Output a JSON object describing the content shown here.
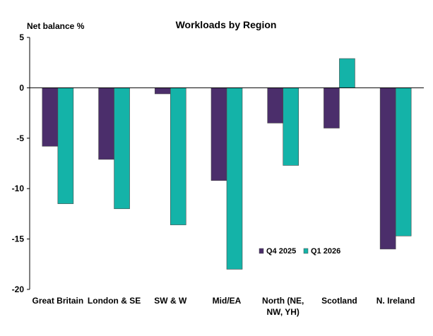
{
  "chart_data": {
    "type": "bar",
    "title": "Workloads by Region",
    "ylabel": "Net balance %",
    "xlabel": "",
    "ylim": [
      -20,
      5
    ],
    "yticks": [
      5,
      0,
      -5,
      -10,
      -15,
      -20
    ],
    "categories": [
      [
        "Great Britain"
      ],
      [
        "London & SE"
      ],
      [
        "SW & W"
      ],
      [
        "Mid/EA"
      ],
      [
        "North (NE,",
        "NW, YH)"
      ],
      [
        "Scotland"
      ],
      [
        "N. Ireland"
      ]
    ],
    "series": [
      {
        "name": "Q4 2025",
        "color": "#4b2e6b",
        "values": [
          -5.8,
          -7.1,
          -0.6,
          -9.2,
          -3.5,
          -4.0,
          -16.0
        ]
      },
      {
        "name": "Q1 2026",
        "color": "#14b3a8",
        "values": [
          -11.5,
          -12.0,
          -13.6,
          -18.0,
          -7.7,
          2.9,
          -14.7
        ]
      }
    ],
    "grid": false,
    "legend": "bottom-right"
  }
}
